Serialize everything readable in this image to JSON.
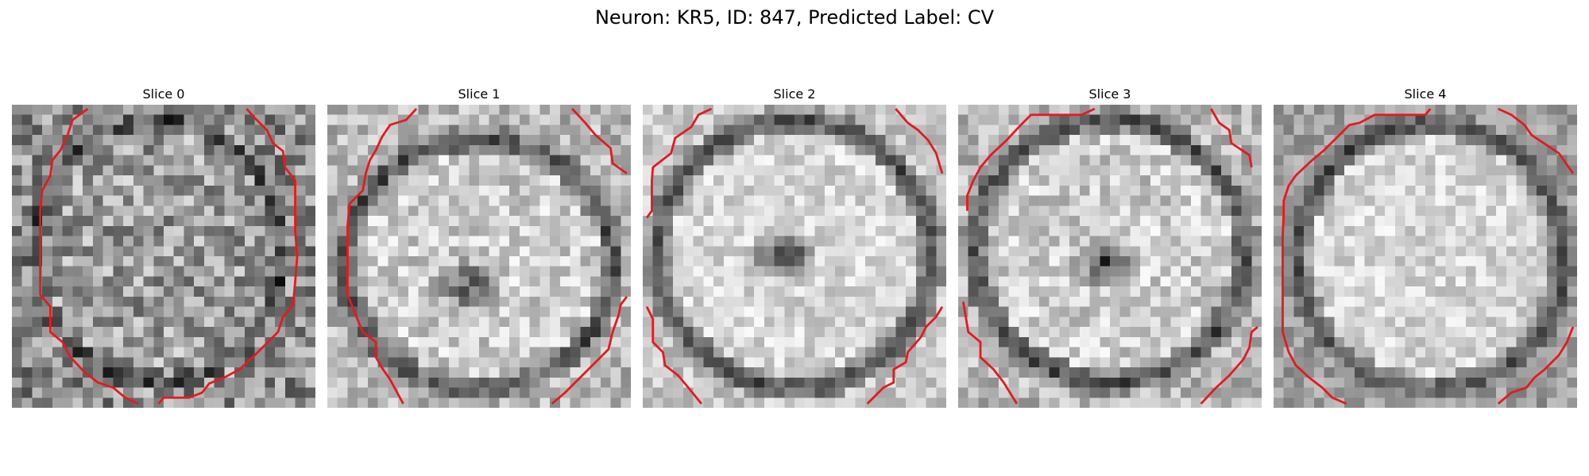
{
  "figure": {
    "title": "Neuron: KR5, ID: 847, Predicted Label: CV"
  },
  "panels": [
    {
      "title": "Slice 0"
    },
    {
      "title": "Slice 1"
    },
    {
      "title": "Slice 2"
    },
    {
      "title": "Slice 3"
    },
    {
      "title": "Slice 4"
    }
  ],
  "colors": {
    "contour": "#e41a1c",
    "background": "#ffffff"
  },
  "colormap": "gray"
}
